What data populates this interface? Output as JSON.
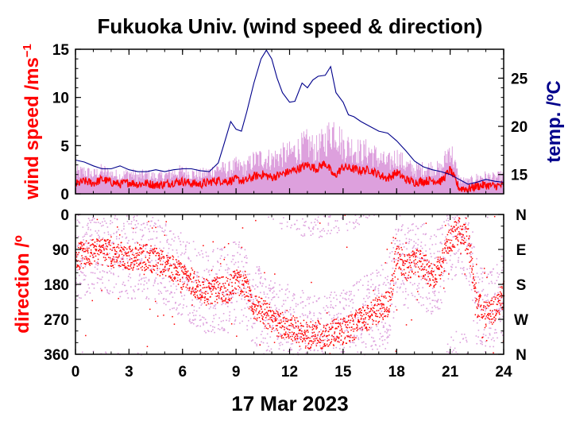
{
  "title": "Fukuoka Univ. (wind speed & direction)",
  "date_label": "17 Mar 2023",
  "colors": {
    "speed_line": "#ff0000",
    "speed_gust": "#dda0dd",
    "temperature": "#00008b",
    "direction_main": "#ff0000",
    "direction_scatter": "#dda0dd",
    "axis": "#000000"
  },
  "chart_data": [
    {
      "type": "line",
      "panel": "wind speed & temperature",
      "xlim": [
        0,
        24
      ],
      "x_ticks": [
        "0",
        "3",
        "6",
        "9",
        "12",
        "15",
        "18",
        "21",
        "24"
      ],
      "ylabel_left": "wind speed /ms",
      "ylabel_left_sup": "−1",
      "ylim_left": [
        0,
        15
      ],
      "y_ticks_left": [
        "0",
        "5",
        "10",
        "15"
      ],
      "ylabel_right": "temp. /ºC",
      "ylim_right": [
        13,
        28
      ],
      "y_ticks_right": [
        "15",
        "20",
        "25"
      ],
      "series": [
        {
          "role": "wind speed (10-min mean)",
          "x": [
            0,
            0.5,
            1,
            1.5,
            2,
            2.5,
            3,
            3.5,
            4,
            4.5,
            5,
            5.5,
            6,
            6.5,
            7,
            7.5,
            8,
            8.5,
            9,
            9.5,
            10,
            10.5,
            11,
            11.5,
            12,
            12.5,
            13,
            13.5,
            14,
            14.5,
            15,
            15.5,
            16,
            16.5,
            17,
            17.5,
            18,
            18.5,
            19,
            19.5,
            20,
            20.5,
            21,
            21.5,
            22,
            22.5,
            23,
            23.5,
            24
          ],
          "values": [
            1.0,
            1.3,
            1.1,
            1.5,
            1.2,
            1.0,
            1.2,
            1.0,
            1.1,
            0.9,
            1.0,
            1.2,
            1.3,
            1.1,
            1.0,
            1.2,
            1.4,
            1.3,
            1.5,
            1.3,
            1.8,
            2.0,
            1.7,
            2.0,
            2.3,
            2.6,
            3.0,
            2.6,
            3.2,
            1.8,
            2.8,
            2.6,
            2.4,
            2.5,
            2.0,
            1.6,
            2.2,
            1.5,
            1.2,
            1.3,
            1.4,
            1.3,
            2.5,
            0.6,
            0.5,
            0.8,
            0.9,
            0.8,
            0.9
          ]
        },
        {
          "role": "wind speed (max envelope)",
          "x": [
            0,
            0.5,
            1,
            1.5,
            2,
            2.5,
            3,
            3.5,
            4,
            4.5,
            5,
            5.5,
            6,
            6.5,
            7,
            7.5,
            8,
            8.5,
            9,
            9.5,
            10,
            10.5,
            11,
            11.5,
            12,
            12.5,
            13,
            13.5,
            14,
            14.5,
            15,
            15.5,
            16,
            16.5,
            17,
            17.5,
            18,
            18.5,
            19,
            19.5,
            20,
            20.5,
            21,
            21.5,
            22,
            22.5,
            23,
            23.5,
            24
          ],
          "values": [
            2.6,
            2.8,
            2.4,
            2.9,
            2.5,
            2.2,
            2.6,
            2.2,
            2.4,
            2.1,
            2.3,
            2.6,
            2.8,
            2.5,
            2.4,
            2.7,
            3.2,
            3.0,
            3.5,
            3.2,
            4.2,
            4.5,
            4.3,
            4.8,
            5.0,
            5.6,
            6.2,
            5.5,
            6.6,
            8.2,
            6.0,
            5.8,
            5.2,
            5.3,
            4.4,
            3.8,
            4.6,
            3.6,
            3.0,
            3.1,
            3.3,
            3.0,
            5.8,
            1.8,
            1.5,
            2.0,
            2.2,
            2.0,
            2.3
          ]
        },
        {
          "role": "temperature",
          "x": [
            0,
            0.5,
            1,
            1.5,
            2,
            2.5,
            3,
            3.5,
            4,
            4.5,
            5,
            5.5,
            6,
            6.5,
            7,
            7.5,
            8,
            8.3,
            8.7,
            9,
            9.3,
            9.6,
            10,
            10.4,
            10.7,
            11,
            11.3,
            11.6,
            12,
            12.3,
            12.7,
            13,
            13.3,
            13.6,
            14,
            14.3,
            14.6,
            15,
            15.3,
            15.6,
            16,
            16.5,
            17,
            17.5,
            18,
            18.5,
            19,
            19.5,
            20,
            20.5,
            21,
            21.5,
            22,
            22.5,
            23,
            23.5,
            24
          ],
          "values": [
            16.5,
            16.3,
            15.9,
            15.6,
            15.6,
            15.9,
            15.5,
            15.3,
            15.3,
            15.5,
            15.3,
            15.5,
            15.6,
            15.6,
            15.4,
            15.3,
            16.2,
            18.0,
            20.5,
            19.7,
            19.5,
            21.5,
            24.5,
            27.0,
            27.9,
            27.0,
            25.0,
            23.5,
            22.5,
            22.6,
            24.5,
            24.0,
            24.8,
            25.2,
            25.3,
            26.2,
            23.5,
            22.5,
            21.2,
            21.0,
            20.5,
            20.0,
            19.5,
            19.3,
            18.5,
            17.5,
            16.4,
            15.8,
            15.5,
            15.3,
            15.0,
            14.5,
            14.0,
            14.2,
            14.5,
            14.3,
            14.2
          ]
        }
      ]
    },
    {
      "type": "scatter",
      "panel": "wind direction",
      "xlim": [
        0,
        24
      ],
      "xlabel": "17 Mar 2023",
      "x_ticks": [
        "0",
        "3",
        "6",
        "9",
        "12",
        "15",
        "18",
        "21",
        "24"
      ],
      "ylabel": "direction /º",
      "ylim": [
        0,
        360
      ],
      "y_ticks": [
        "0",
        "90",
        "180",
        "270",
        "360"
      ],
      "y_ticks_right": [
        "N",
        "E",
        "S",
        "W",
        "N"
      ],
      "series": [
        {
          "role": "mean direction",
          "x": [
            0,
            0.5,
            1,
            1.5,
            2,
            2.5,
            3,
            3.5,
            4,
            4.5,
            5,
            5.5,
            6,
            6.5,
            7,
            7.5,
            8,
            8.5,
            9,
            9.5,
            10,
            10.5,
            11,
            11.5,
            12,
            12.5,
            13,
            13.5,
            14,
            14.5,
            15,
            15.5,
            16,
            16.5,
            17,
            17.5,
            18,
            18.5,
            19,
            19.5,
            20,
            20.5,
            21,
            21.5,
            22,
            22.5,
            23,
            23.5,
            24
          ],
          "values": [
            110,
            100,
            90,
            95,
            100,
            105,
            110,
            105,
            110,
            120,
            130,
            140,
            160,
            170,
            195,
            200,
            190,
            195,
            170,
            180,
            235,
            250,
            270,
            285,
            290,
            300,
            310,
            305,
            315,
            300,
            300,
            290,
            270,
            260,
            240,
            230,
            100,
            140,
            120,
            130,
            160,
            130,
            60,
            40,
            70,
            230,
            260,
            240,
            200
          ]
        }
      ]
    }
  ]
}
